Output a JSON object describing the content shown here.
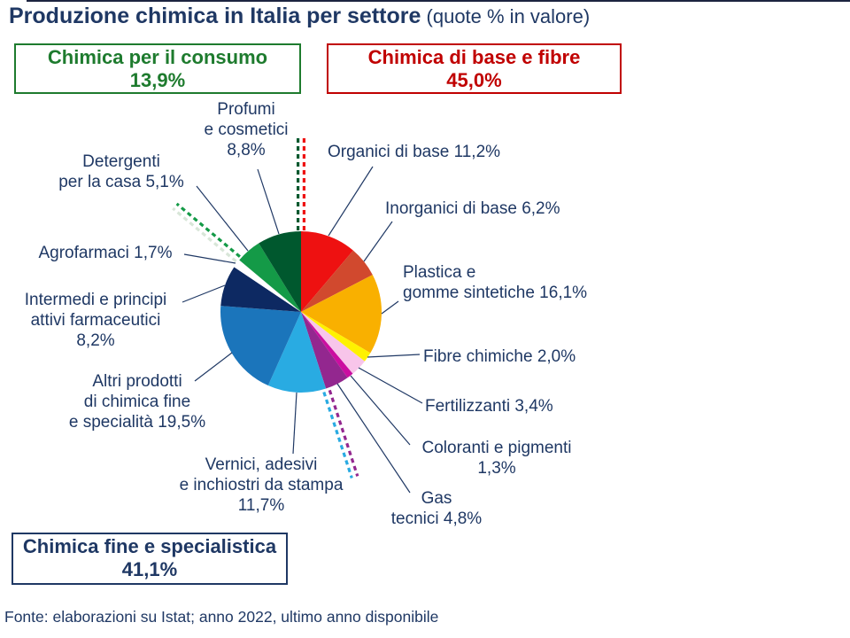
{
  "title": "Produzione chimica in Italia per settore",
  "subtitle": " (quote % in valore)",
  "footer": "Fonte: elaborazioni su Istat; anno 2022, ultimo anno disponibile",
  "groups": {
    "consumo": {
      "label": "Chimica per il consumo",
      "value": "13,9%",
      "color": "#1E7B2E"
    },
    "base": {
      "label": "Chimica di base e fibre",
      "value": "45,0%",
      "color": "#C00000"
    },
    "fine": {
      "label": "Chimica fine e specialistica",
      "value": "41,1%",
      "color": "#1F3864"
    }
  },
  "chart_data": {
    "type": "pie",
    "unit": "percent of value",
    "start_angle_deg": 0,
    "direction": "clockwise",
    "total": 100,
    "slices": [
      {
        "id": "organici",
        "name": "Organici di base",
        "value": 11.2,
        "display": "11,2%",
        "color": "#EE1111",
        "group": "Chimica di base e fibre",
        "label_lines": [
          "Organici di base 11,2%"
        ]
      },
      {
        "id": "inorganici",
        "name": "Inorganici di base",
        "value": 6.2,
        "display": "6,2%",
        "color": "#D1492E",
        "group": "Chimica di base e fibre",
        "label_lines": [
          "Inorganici di base 6,2%"
        ]
      },
      {
        "id": "plastica",
        "name": "Plastica e gomme sintetiche",
        "value": 16.1,
        "display": "16,1%",
        "color": "#F9B000",
        "group": "Chimica di base e fibre",
        "label_lines": [
          "Plastica e",
          "gomme sintetiche 16,1%"
        ]
      },
      {
        "id": "fibre",
        "name": "Fibre chimiche",
        "value": 2.0,
        "display": "2,0%",
        "color": "#FFF200",
        "group": "Chimica di base e fibre",
        "label_lines": [
          "Fibre chimiche 2,0%"
        ]
      },
      {
        "id": "fertilizzanti",
        "name": "Fertilizzanti",
        "value": 3.4,
        "display": "3,4%",
        "color": "#F8C5EA",
        "group": "Chimica di base e fibre",
        "label_lines": [
          "Fertilizzanti 3,4%"
        ]
      },
      {
        "id": "coloranti",
        "name": "Coloranti e pigmenti",
        "value": 1.3,
        "display": "1,3%",
        "color": "#CB0EA0",
        "group": "Chimica di base e fibre",
        "label_lines": [
          "Coloranti e pigmenti",
          "1,3%"
        ]
      },
      {
        "id": "gas",
        "name": "Gas tecnici",
        "value": 4.8,
        "display": "4,8%",
        "color": "#93278F",
        "group": "Chimica di base e fibre",
        "label_lines": [
          "Gas",
          "tecnici 4,8%"
        ]
      },
      {
        "id": "vernici",
        "name": "Vernici, adesivi e inchiostri da stampa",
        "value": 11.7,
        "display": "11,7%",
        "color": "#29ABE2",
        "group": "Chimica fine e specialistica",
        "label_lines": [
          "Vernici, adesivi",
          "e inchiostri da stampa",
          "11,7%"
        ]
      },
      {
        "id": "altri",
        "name": "Altri prodotti di chimica fine e specialità",
        "value": 19.5,
        "display": "19,5%",
        "color": "#1B75BB",
        "group": "Chimica fine e specialistica",
        "label_lines": [
          "Altri prodotti",
          "di chimica fine",
          "e specialità 19,5%"
        ]
      },
      {
        "id": "intermedi",
        "name": "Intermedi e principi attivi farmaceutici",
        "value": 8.2,
        "display": "8,2%",
        "color": "#0D2962",
        "group": "Chimica fine e specialistica",
        "label_lines": [
          "Intermedi e principi",
          "attivi farmaceutici",
          "8,2%"
        ]
      },
      {
        "id": "agrofarmaci",
        "name": "Agrofarmaci",
        "value": 1.7,
        "display": "1,7%",
        "color": "#FFFFFF",
        "group": "Chimica fine e specialistica",
        "label_lines": [
          "Agrofarmaci 1,7%"
        ]
      },
      {
        "id": "detergenti",
        "name": "Detergenti per la casa",
        "value": 5.1,
        "display": "5,1%",
        "color": "#149A47",
        "group": "Chimica per il consumo",
        "label_lines": [
          "Detergenti",
          "per la casa 5,1%"
        ]
      },
      {
        "id": "profumi",
        "name": "Profumi e cosmetici",
        "value": 8.8,
        "display": "8,8%",
        "color": "#00582E",
        "group": "Chimica per il consumo",
        "label_lines": [
          "Profumi",
          "e cosmetici",
          "8,8%"
        ]
      }
    ],
    "legend": "none",
    "annotations": "labels with leader lines; dashed two-color separators between the three macro-groups"
  }
}
